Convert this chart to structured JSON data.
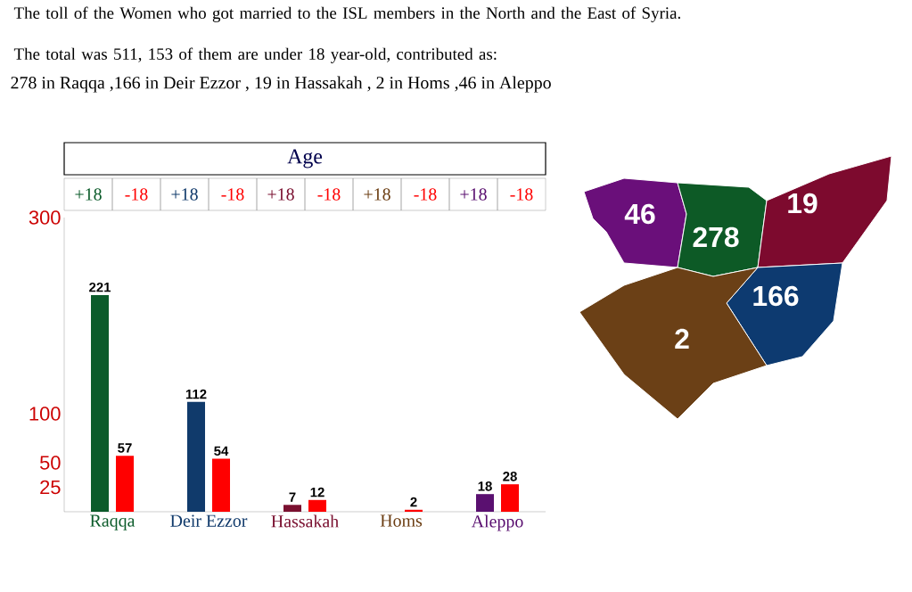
{
  "chart_data": [
    {
      "type": "bar",
      "title": "The toll of the Women who got married to the ISL members in the North and the East of Syria.",
      "subtitle": "The total was 511, 153 of them are under 18 year-old, contributed as:",
      "annotations": [
        "278 in Raqqa ,166 in Deir Ezzor , 19 in Hassakah , 2 in Homs ,46 in Aleppo"
      ],
      "legend_title": "Age",
      "legend": "top",
      "categories": [
        "Raqqa",
        "Deir Ezzor",
        "Hassakah",
        "Homs",
        "Aleppo"
      ],
      "series": [
        {
          "name": "+18",
          "colors": [
            "#0b5b2a",
            "#103a6b",
            "#7a1030",
            "#6b3d12",
            "#5a1070"
          ],
          "values": [
            221,
            112,
            7,
            null,
            18
          ]
        },
        {
          "name": "-18",
          "color": "#ff0000",
          "values": [
            57,
            54,
            12,
            2,
            28
          ]
        }
      ],
      "ylim": [
        0,
        300
      ],
      "yticks": [
        25,
        50,
        100,
        300
      ],
      "data_labels": true
    },
    {
      "type": "other",
      "data_labels": true,
      "values": [
        46,
        278,
        19,
        166,
        2
      ],
      "colors": [
        "#6a0f7a",
        "#0d5a26",
        "#7d0a2e",
        "#0d3a70",
        "#6b4016"
      ]
    }
  ]
}
